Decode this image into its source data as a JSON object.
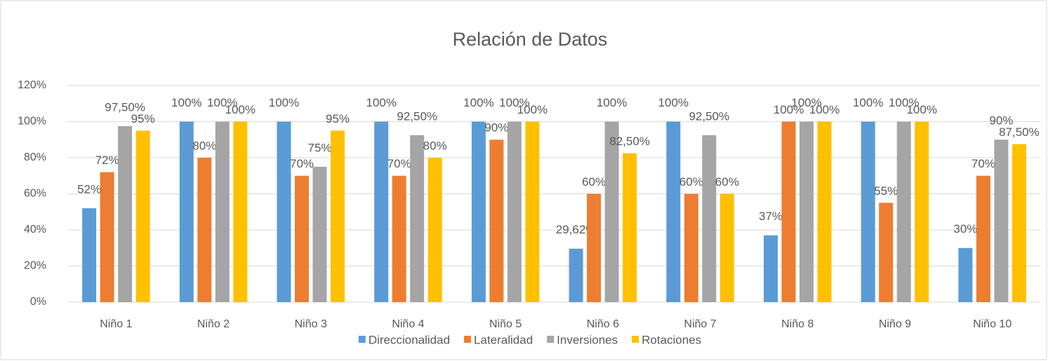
{
  "chart_data": {
    "type": "bar",
    "title": "Relación de Datos",
    "categories": [
      "Niño 1",
      "Niño 2",
      "Niño 3",
      "Niño 4",
      "Niño 5",
      "Niño 6",
      "Niño 7",
      "Niño 8",
      "Niño 9",
      "Niño 10"
    ],
    "series": [
      {
        "name": "Direccionalidad",
        "color": "#5b9bd5",
        "values": [
          52,
          100,
          100,
          100,
          100,
          29.62,
          100,
          37,
          100,
          30
        ],
        "value_labels": [
          "52%",
          "100%",
          "100%",
          "100%",
          "100%",
          "29,62%",
          "100%",
          "37%",
          "100%",
          "30%"
        ]
      },
      {
        "name": "Lateralidad",
        "color": "#ed7d31",
        "values": [
          72,
          80,
          70,
          70,
          90,
          60,
          60,
          100,
          55,
          70
        ],
        "value_labels": [
          "72%",
          "80%",
          "70%",
          "70%",
          "90%",
          "60%",
          "60%",
          "100%",
          "55%",
          "70%"
        ]
      },
      {
        "name": "Inversiones",
        "color": "#a5a5a5",
        "values": [
          97.5,
          100,
          75,
          92.5,
          100,
          100,
          92.5,
          100,
          100,
          90
        ],
        "value_labels": [
          "97,50%",
          "100%",
          "75%",
          "92,50%",
          "100%",
          "100%",
          "92,50%",
          "100%",
          "100%",
          "90%"
        ]
      },
      {
        "name": "Rotaciones",
        "color": "#ffc000",
        "values": [
          95,
          100,
          95,
          80,
          100,
          82.5,
          60,
          100,
          100,
          87.5
        ],
        "value_labels": [
          "95%",
          "100%",
          "95%",
          "80%",
          "100%",
          "82,50%",
          "60%",
          "100%",
          "100%",
          "87,50%"
        ]
      }
    ],
    "ylim": [
      0,
      120
    ],
    "yticks": [
      {
        "value": 0,
        "label": "0%"
      },
      {
        "value": 20,
        "label": "20%"
      },
      {
        "value": 40,
        "label": "40%"
      },
      {
        "value": 60,
        "label": "60%"
      },
      {
        "value": 80,
        "label": "80%"
      },
      {
        "value": 100,
        "label": "100%"
      },
      {
        "value": 120,
        "label": "120%"
      }
    ],
    "grid": true,
    "legend": "bottom"
  }
}
